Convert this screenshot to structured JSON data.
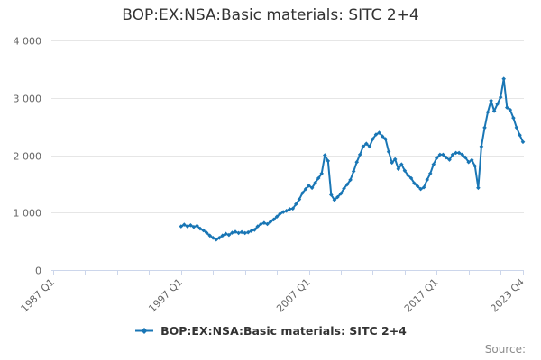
{
  "title": "BOP:EX:NSA:Basic materials: SITC 2+4",
  "source_label": "Source:",
  "legend": {
    "label": "BOP:EX:NSA:Basic materials: SITC 2+4",
    "marker": "line-with-diamond"
  },
  "colors": {
    "series": "#1976b5",
    "grid": "#e6e6e6",
    "axis": "#ccd6eb",
    "title_text": "#333333",
    "axis_text": "#666666",
    "legend_text": "#333333",
    "source_text": "#8c8c8c"
  },
  "chart_data": {
    "type": "line",
    "title": "BOP:EX:NSA:Basic materials: SITC 2+4",
    "legend_position": "bottom",
    "grid": "horizontal-only",
    "x_axis": {
      "start": "1987 Q1",
      "end": "2023 Q4",
      "end_tick_index": 147,
      "minor_tick_every_quarters": 10,
      "label_rotation": -45,
      "major_ticks": [
        {
          "label": "1987 Q1",
          "quarter_index": 0
        },
        {
          "label": "1997 Q1",
          "quarter_index": 40
        },
        {
          "label": "2007 Q1",
          "quarter_index": 80
        },
        {
          "label": "2017 Q1",
          "quarter_index": 120
        },
        {
          "label": "2023 Q4",
          "quarter_index": 147
        }
      ]
    },
    "y_axis": {
      "min": 0,
      "max": 4000,
      "ticks": [
        0,
        1000,
        2000,
        3000,
        4000
      ],
      "tick_labels": [
        "0",
        "1 000",
        "2 000",
        "3 000",
        "4 000"
      ],
      "gridlines": true
    },
    "series": [
      {
        "name": "BOP:EX:NSA:Basic materials: SITC 2+4",
        "color": "#1976b5",
        "marker": "diamond",
        "frequency": "quarterly",
        "start": "1997 Q1",
        "start_index_from_1987Q1": 40,
        "values": [
          760,
          790,
          760,
          780,
          750,
          770,
          720,
          690,
          650,
          600,
          560,
          530,
          560,
          600,
          630,
          610,
          650,
          665,
          645,
          660,
          645,
          655,
          680,
          700,
          760,
          800,
          820,
          800,
          840,
          880,
          930,
          980,
          1010,
          1030,
          1060,
          1070,
          1150,
          1230,
          1340,
          1410,
          1470,
          1430,
          1520,
          1600,
          1680,
          2000,
          1900,
          1310,
          1220,
          1270,
          1330,
          1420,
          1490,
          1570,
          1720,
          1880,
          2010,
          2150,
          2200,
          2150,
          2280,
          2360,
          2390,
          2330,
          2280,
          2060,
          1870,
          1930,
          1760,
          1840,
          1730,
          1650,
          1600,
          1510,
          1460,
          1410,
          1440,
          1570,
          1680,
          1840,
          1950,
          2010,
          2010,
          1960,
          1920,
          2010,
          2040,
          2040,
          2010,
          1960,
          1880,
          1915,
          1810,
          1430,
          2150,
          2480,
          2750,
          2950,
          2770,
          2890,
          3010,
          3330,
          2830,
          2790,
          2650,
          2480,
          2350,
          2230
        ]
      }
    ]
  }
}
